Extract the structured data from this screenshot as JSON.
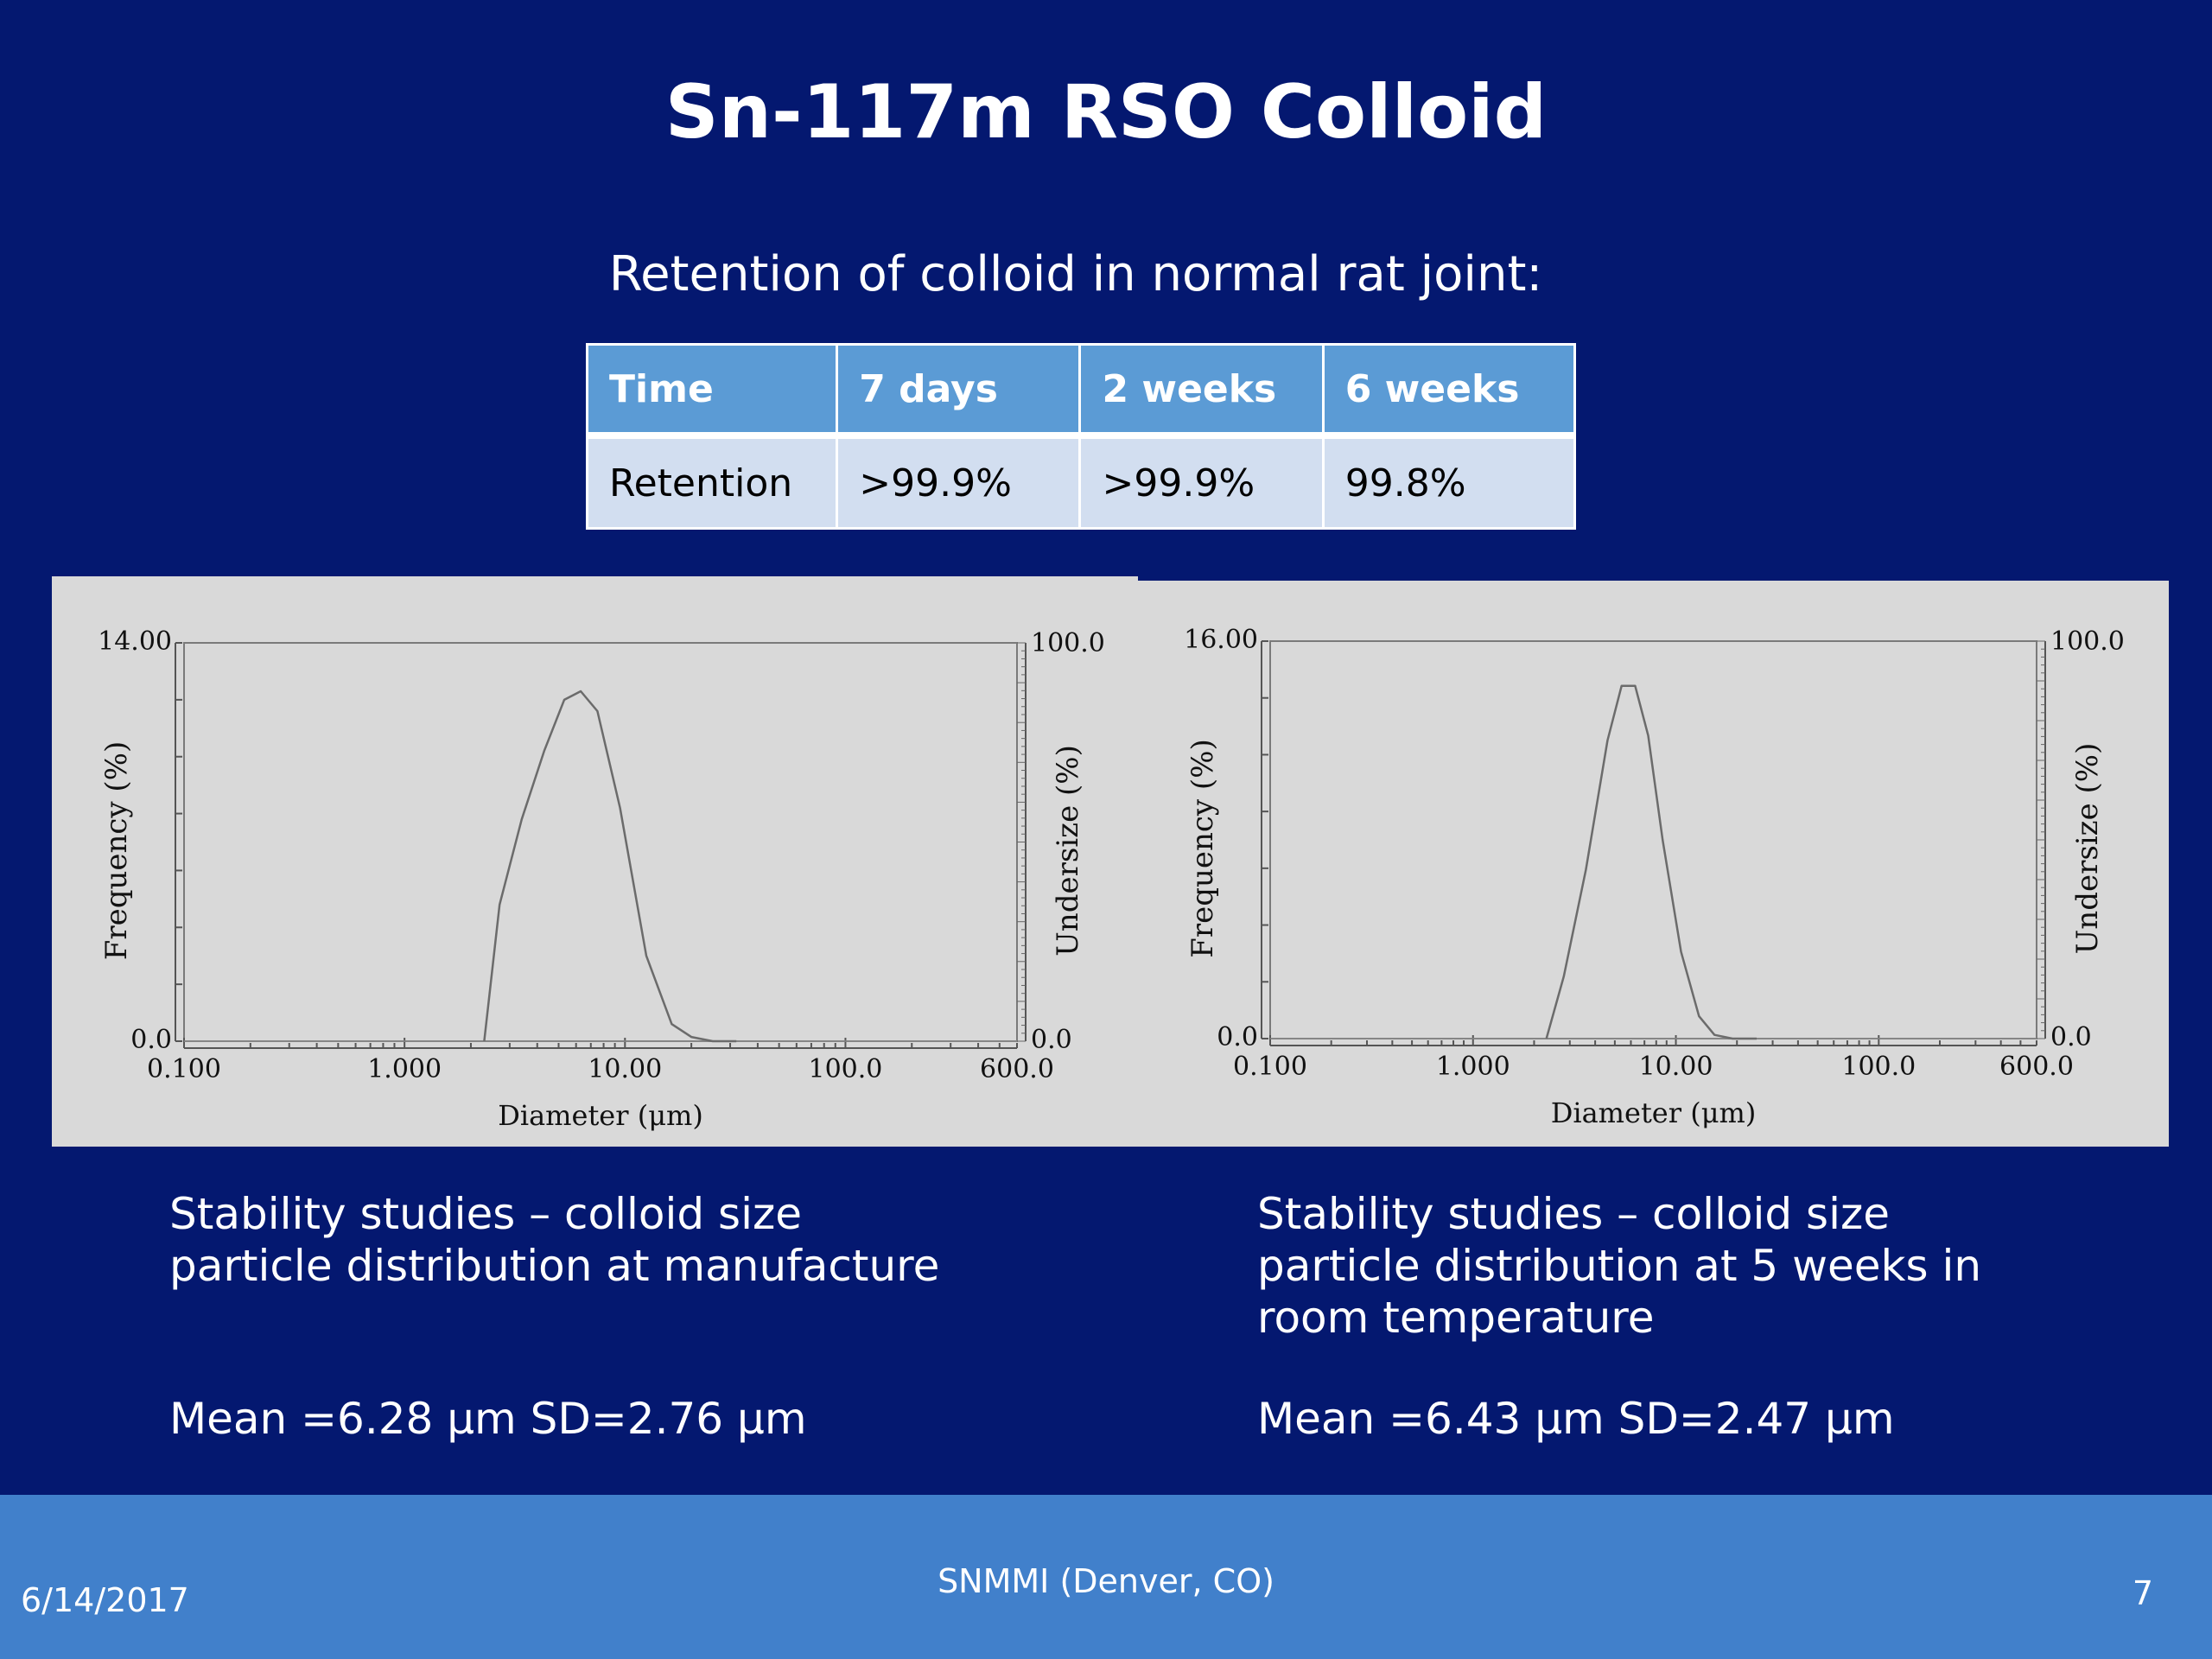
{
  "slide": {
    "title": "Sn-117m RSO Colloid",
    "subtitle": "Retention of colloid in normal rat joint:"
  },
  "table": {
    "headers": [
      "Time",
      "7 days",
      "2 weeks",
      "6 weeks"
    ],
    "row": [
      "Retention",
      ">99.9%",
      ">99.9%",
      "99.8%"
    ]
  },
  "captions": {
    "left_lines": [
      "Stability studies – colloid size",
      "particle distribution at manufacture"
    ],
    "left_stats": "Mean =6.28 μm SD=2.76 μm",
    "right_lines": [
      "Stability studies – colloid size",
      "particle distribution at 5 weeks in",
      "room temperature"
    ],
    "right_stats": "Mean =6.43 μm SD=2.47 μm"
  },
  "footer": {
    "date": "6/14/2017",
    "center": "SNMMI (Denver, CO)",
    "page": "7"
  },
  "colors": {
    "background": "#041870",
    "footer": "#4180cb",
    "table_header": "#5b9bd5",
    "table_body": "#d2def0",
    "chart_panel": "#d9d9d9"
  },
  "chart_data": [
    {
      "type": "line",
      "x_scale": "log",
      "xlim": [
        0.1,
        600.0
      ],
      "xticks": [
        "0.100",
        "1.000",
        "10.00",
        "100.0",
        "600.0"
      ],
      "xlabel": "Diameter (μm)",
      "ylabel": "Frequency (%)",
      "ylim": [
        0.0,
        14.0
      ],
      "yticks": [
        "0.0",
        "14.00"
      ],
      "y2label": "Undersize (%)",
      "y2lim": [
        0.0,
        100.0
      ],
      "y2ticks": [
        "0.0",
        "100.0"
      ],
      "grid": false,
      "series": [
        {
          "x": [
            2.3,
            2.7,
            3.4,
            4.3,
            5.3,
            6.3,
            7.5,
            9.5,
            12.5,
            16.3,
            20.0,
            25.0,
            32.0
          ],
          "y": [
            0.0,
            4.8,
            7.8,
            10.2,
            12.0,
            12.3,
            11.6,
            8.2,
            3.0,
            0.6,
            0.15,
            0.0,
            0.0
          ]
        }
      ]
    },
    {
      "type": "line",
      "x_scale": "log",
      "xlim": [
        0.1,
        600.0
      ],
      "xticks": [
        "0.100",
        "1.000",
        "10.00",
        "100.0",
        "600.0"
      ],
      "xlabel": "Diameter (μm)",
      "ylabel": "Frequency (%)",
      "ylim": [
        0.0,
        16.0
      ],
      "yticks": [
        "0.0",
        "16.00"
      ],
      "y2label": "Undersize (%)",
      "y2lim": [
        0.0,
        100.0
      ],
      "y2ticks": [
        "0.0",
        "100.0"
      ],
      "grid": false,
      "series": [
        {
          "x": [
            2.3,
            2.8,
            3.6,
            4.6,
            5.4,
            6.3,
            7.3,
            8.6,
            10.6,
            13.0,
            15.5,
            19.0,
            25.0
          ],
          "y": [
            0.0,
            2.5,
            6.8,
            12.0,
            14.2,
            14.2,
            12.2,
            8.0,
            3.5,
            0.9,
            0.15,
            0.0,
            0.0
          ]
        }
      ]
    }
  ]
}
